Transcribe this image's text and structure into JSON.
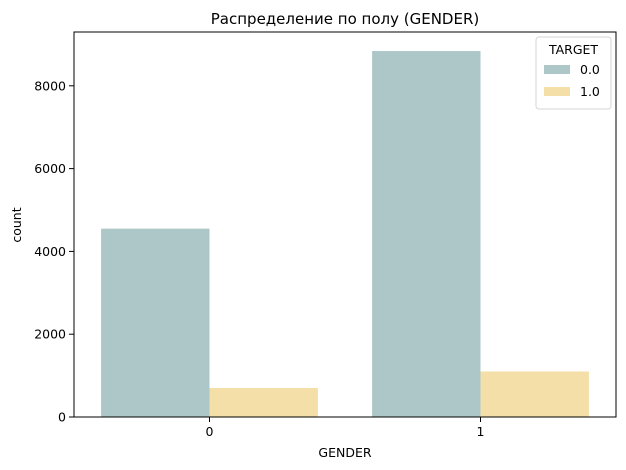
{
  "chart_data": {
    "type": "bar",
    "title": "Распределение по полу (GENDER)",
    "xlabel": "GENDER",
    "ylabel": "count",
    "categories": [
      "0",
      "1"
    ],
    "series": [
      {
        "name": "0.0",
        "color": "#adc7c8",
        "values": [
          4550,
          8840
        ]
      },
      {
        "name": "1.0",
        "color": "#f5dfa8",
        "values": [
          700,
          1100
        ]
      }
    ],
    "ylim": [
      0,
      9300
    ],
    "yticks": [
      0,
      2000,
      4000,
      6000,
      8000
    ],
    "ytick_labels": [
      "0",
      "2000",
      "4000",
      "6000",
      "8000"
    ],
    "grid": false,
    "legend": {
      "title": "TARGET",
      "placement": "top-right"
    }
  }
}
